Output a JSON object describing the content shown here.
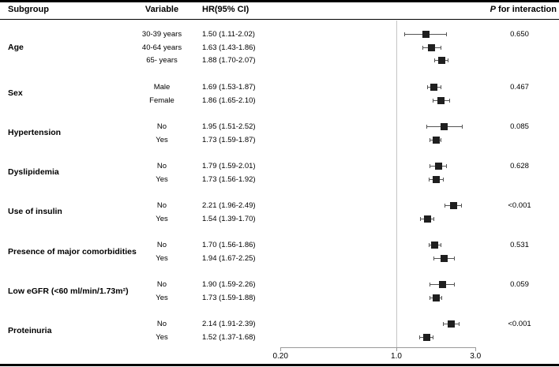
{
  "header": {
    "subgroup": "Subgroup",
    "variable": "Variable",
    "hr": "HR(95% CI)",
    "p_italic": "P",
    "p_rest": " for interaction"
  },
  "colors": {
    "marker": "#1f1f1f",
    "ci_line": "#555555",
    "ref_line": "#c5c5c5",
    "axis": "#999999",
    "border": "#000000",
    "text": "#000000"
  },
  "chart_data": {
    "type": "forest",
    "scale": "log10",
    "x_axis": {
      "range": [
        0.2,
        3.0
      ],
      "reference_line": 1.0,
      "ticks": [
        {
          "label": "0.20",
          "value": 0.2
        },
        {
          "label": "1.0",
          "value": 1.0
        },
        {
          "label": "3.0",
          "value": 3.0
        }
      ]
    },
    "groups": [
      {
        "label": "Age",
        "p_interaction": "0.650",
        "rows": [
          {
            "variable": "30-39 years",
            "hr_text": "1.50 (1.11-2.02)",
            "hr": 1.5,
            "lo": 1.11,
            "hi": 2.02
          },
          {
            "variable": "40-64 years",
            "hr_text": "1.63 (1.43-1.86)",
            "hr": 1.63,
            "lo": 1.43,
            "hi": 1.86
          },
          {
            "variable": "65- years",
            "hr_text": "1.88 (1.70-2.07)",
            "hr": 1.88,
            "lo": 1.7,
            "hi": 2.07
          }
        ]
      },
      {
        "label": "Sex",
        "p_interaction": "0.467",
        "rows": [
          {
            "variable": "Male",
            "hr_text": "1.69 (1.53-1.87)",
            "hr": 1.69,
            "lo": 1.53,
            "hi": 1.87
          },
          {
            "variable": "Female",
            "hr_text": "1.86 (1.65-2.10)",
            "hr": 1.86,
            "lo": 1.65,
            "hi": 2.1
          }
        ]
      },
      {
        "label": "Hypertension",
        "p_interaction": "0.085",
        "rows": [
          {
            "variable": "No",
            "hr_text": "1.95 (1.51-2.52)",
            "hr": 1.95,
            "lo": 1.51,
            "hi": 2.52
          },
          {
            "variable": "Yes",
            "hr_text": "1.73 (1.59-1.87)",
            "hr": 1.73,
            "lo": 1.59,
            "hi": 1.87
          }
        ]
      },
      {
        "label": "Dyslipidemia",
        "p_interaction": "0.628",
        "rows": [
          {
            "variable": "No",
            "hr_text": "1.79 (1.59-2.01)",
            "hr": 1.79,
            "lo": 1.59,
            "hi": 2.01
          },
          {
            "variable": "Yes",
            "hr_text": "1.73 (1.56-1.92)",
            "hr": 1.73,
            "lo": 1.56,
            "hi": 1.92
          }
        ]
      },
      {
        "label": "Use of insulin",
        "p_interaction": "<0.001",
        "rows": [
          {
            "variable": "No",
            "hr_text": "2.21 (1.96-2.49)",
            "hr": 2.21,
            "lo": 1.96,
            "hi": 2.49
          },
          {
            "variable": "Yes",
            "hr_text": "1.54 (1.39-1.70)",
            "hr": 1.54,
            "lo": 1.39,
            "hi": 1.7
          }
        ]
      },
      {
        "label": "Presence of major comorbidities",
        "p_interaction": "0.531",
        "rows": [
          {
            "variable": "No",
            "hr_text": "1.70 (1.56-1.86)",
            "hr": 1.7,
            "lo": 1.56,
            "hi": 1.86
          },
          {
            "variable": "Yes",
            "hr_text": "1.94 (1.67-2.25)",
            "hr": 1.94,
            "lo": 1.67,
            "hi": 2.25
          }
        ]
      },
      {
        "label": "Low eGFR (<60 ml/min/1.73m²)",
        "p_interaction": "0.059",
        "rows": [
          {
            "variable": "No",
            "hr_text": "1.90 (1.59-2.26)",
            "hr": 1.9,
            "lo": 1.59,
            "hi": 2.26
          },
          {
            "variable": "Yes",
            "hr_text": "1.73 (1.59-1.88)",
            "hr": 1.73,
            "lo": 1.59,
            "hi": 1.88
          }
        ]
      },
      {
        "label": "Proteinuria",
        "p_interaction": "<0.001",
        "rows": [
          {
            "variable": "No",
            "hr_text": "2.14 (1.91-2.39)",
            "hr": 2.14,
            "lo": 1.91,
            "hi": 2.39
          },
          {
            "variable": "Yes",
            "hr_text": "1.52 (1.37-1.68)",
            "hr": 1.52,
            "lo": 1.37,
            "hi": 1.68
          }
        ]
      }
    ]
  }
}
